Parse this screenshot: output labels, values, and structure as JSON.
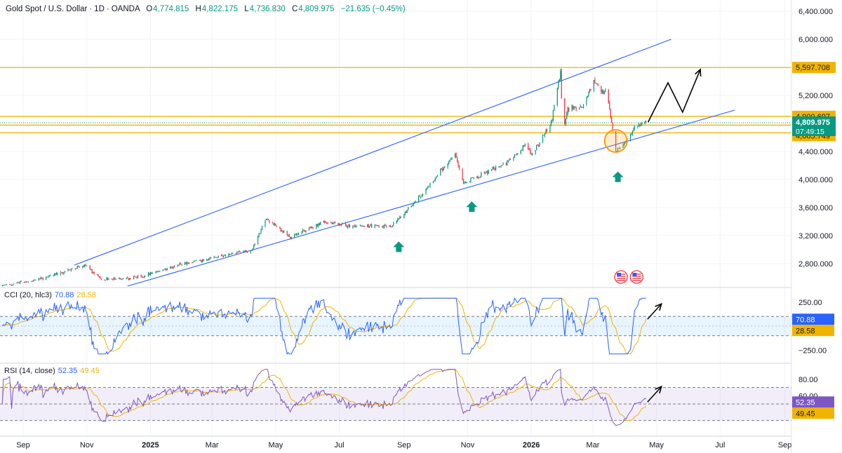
{
  "header": {
    "symbol": "Gold Spot / U.S. Dollar",
    "interval": "1D",
    "source": "OANDA",
    "open_label": "O",
    "open": "4,774.815",
    "high_label": "H",
    "high": "4,822.175",
    "low_label": "L",
    "low": "4,736.830",
    "close_label": "C",
    "close": "4,809.975",
    "change": "−21.635 (−0.45%)"
  },
  "colors": {
    "up": "#089981",
    "down": "#f23645",
    "channel": "#2962ff",
    "level": "#f0b400",
    "cci": "#2962ff",
    "signal": "#f0b400",
    "rsi": "#7e57c2",
    "arrow_up": "#089981"
  },
  "chart_data": [
    {
      "type": "candlestick",
      "title": "Gold Spot / U.S. Dollar · 1D · OANDA",
      "y_ticks": [
        2800,
        3200,
        3600,
        4000,
        4400,
        4800,
        5200,
        6000,
        6400
      ],
      "y_tick_labels": [
        "2,800.000",
        "3,200.000",
        "3,600.000",
        "4,000.000",
        "4,400.000",
        "4,800.000",
        "5,200.000",
        "6,000.000",
        "6,400.000"
      ],
      "x_ticks": [
        "Sep",
        "Nov",
        "2025",
        "Mar",
        "May",
        "Jul",
        "Sep",
        "Nov",
        "2026",
        "Mar",
        "May",
        "Jul",
        "Sep"
      ],
      "price_path": [
        [
          "2024-08-10",
          2480
        ],
        [
          "2024-09-15",
          2570
        ],
        [
          "2024-10-30",
          2780
        ],
        [
          "2024-11-15",
          2570
        ],
        [
          "2024-12-25",
          2620
        ],
        [
          "2025-01-31",
          2800
        ],
        [
          "2025-02-28",
          2880
        ],
        [
          "2025-04-08",
          3000
        ],
        [
          "2025-04-22",
          3450
        ],
        [
          "2025-05-15",
          3180
        ],
        [
          "2025-06-15",
          3400
        ],
        [
          "2025-07-15",
          3340
        ],
        [
          "2025-08-20",
          3330
        ],
        [
          "2025-09-10",
          3650
        ],
        [
          "2025-10-20",
          4350
        ],
        [
          "2025-10-28",
          3950
        ],
        [
          "2025-11-15",
          4080
        ],
        [
          "2025-12-10",
          4250
        ],
        [
          "2025-12-26",
          4500
        ],
        [
          "2026-01-01",
          4350
        ],
        [
          "2026-01-20",
          4800
        ],
        [
          "2026-01-29",
          5550
        ],
        [
          "2026-01-31",
          4700
        ],
        [
          "2026-02-05",
          5000
        ],
        [
          "2026-02-20",
          5050
        ],
        [
          "2026-03-02",
          5400
        ],
        [
          "2026-03-15",
          5200
        ],
        [
          "2026-03-23",
          4400
        ],
        [
          "2026-04-01",
          4550
        ],
        [
          "2026-04-12",
          4770
        ],
        [
          "2026-04-21",
          4810
        ]
      ],
      "horizontal_levels": [
        {
          "value": 5597.708,
          "label": "5,597.708"
        },
        {
          "value": 4900.697,
          "label": "4,900.697"
        },
        {
          "value": 4775.391,
          "label": "4,775.391"
        },
        {
          "value": 4665.749,
          "label": "4,665.749"
        }
      ],
      "last_price": {
        "value": 4809.975,
        "label": "4,809.975",
        "countdown": "07:49:15"
      },
      "channel": {
        "upper": [
          [
            "2024-10-20",
            2780
          ],
          [
            "2026-05-15",
            6000
          ]
        ],
        "lower": [
          [
            "2024-12-10",
            2480
          ],
          [
            "2026-07-15",
            4990
          ]
        ]
      },
      "projection": [
        [
          "2026-04-23",
          4820
        ],
        [
          "2026-05-12",
          5380
        ],
        [
          "2026-05-26",
          4960
        ],
        [
          "2026-06-12",
          5570
        ]
      ],
      "buy_signals": [
        "2025-08-27",
        "2025-11-05",
        "2026-03-25"
      ],
      "highlight": {
        "date": "2026-03-23",
        "value": 4550
      },
      "event_markers": [
        "2026-03-28",
        "2026-04-12"
      ]
    },
    {
      "type": "line",
      "indicator": "CCI",
      "label": "CCI (20, hlc3)",
      "value": "70.88",
      "signal": "28.58",
      "series": [
        {
          "name": "CCI",
          "last": 70.88
        },
        {
          "name": "MA",
          "last": 28.58
        }
      ],
      "y_ticks": [
        250,
        -250
      ],
      "y_tick_labels": [
        "250.00",
        "−250.00"
      ],
      "band": [
        100,
        -100
      ]
    },
    {
      "type": "line",
      "indicator": "RSI",
      "label": "RSI (14, close)",
      "value": "52.35",
      "signal": "49.45",
      "series": [
        {
          "name": "RSI",
          "last": 52.35
        },
        {
          "name": "MA",
          "last": 49.45
        }
      ],
      "y_ticks": [
        80,
        60
      ],
      "y_tick_labels": [
        "80.00",
        "60.00"
      ],
      "band": [
        70,
        30
      ]
    }
  ]
}
